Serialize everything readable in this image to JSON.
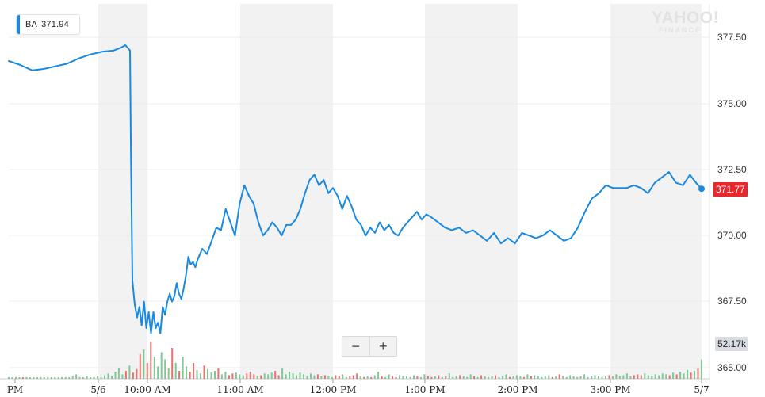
{
  "header": {
    "symbol": "BA",
    "value": "371.94",
    "accent": "#1a8ae0"
  },
  "watermark": {
    "main": "YAHOO!",
    "sub": "FINANCE"
  },
  "zoom": {
    "minus": "−",
    "plus": "+"
  },
  "badges": {
    "last_price": "371.77",
    "last_volume": "52.17k"
  },
  "colors": {
    "line": "#1a8ae0",
    "shade": "#f2f2f2",
    "grid": "#ececec",
    "vol_up": "#7fc795",
    "vol_down": "#e8726e",
    "price_badge": "#e8282c"
  },
  "chart_data": {
    "type": "line",
    "ylim": [
      365.0,
      378.5
    ],
    "y_ticks": [
      "377.50",
      "375.00",
      "372.50",
      "370.00",
      "367.50",
      "365.00"
    ],
    "x_ticks": [
      "PM",
      "5/6",
      "10:00 AM",
      "11:00 AM",
      "12:00 PM",
      "1:00 PM",
      "2:00 PM",
      "3:00 PM",
      "5/7"
    ],
    "shaded_bands": [
      [
        1,
        2
      ],
      [
        3,
        4
      ],
      [
        5,
        6
      ],
      [
        7,
        8
      ]
    ],
    "series": [
      {
        "points": [
          [
            0,
            376.6
          ],
          [
            5,
            376.45
          ],
          [
            10,
            376.25
          ],
          [
            15,
            376.3
          ],
          [
            20,
            376.4
          ],
          [
            25,
            376.5
          ],
          [
            30,
            376.7
          ],
          [
            35,
            376.85
          ],
          [
            40,
            376.95
          ],
          [
            45,
            377.0
          ],
          [
            48,
            377.1
          ],
          [
            50,
            377.2
          ],
          [
            52,
            377.0
          ],
          [
            52.4,
            373.0
          ],
          [
            53,
            368.3
          ],
          [
            54,
            367.4
          ],
          [
            55,
            366.9
          ],
          [
            56,
            367.3
          ],
          [
            57,
            366.6
          ],
          [
            58,
            367.5
          ],
          [
            59,
            366.5
          ],
          [
            60,
            367.1
          ],
          [
            61,
            366.3
          ],
          [
            62,
            367.1
          ],
          [
            63,
            366.5
          ],
          [
            64,
            366.7
          ],
          [
            65,
            366.3
          ],
          [
            66,
            367.3
          ],
          [
            67,
            367.0
          ],
          [
            68,
            367.5
          ],
          [
            69,
            367.8
          ],
          [
            70,
            367.5
          ],
          [
            71,
            367.7
          ],
          [
            72,
            368.2
          ],
          [
            73,
            367.8
          ],
          [
            74,
            367.6
          ],
          [
            75,
            368.0
          ],
          [
            76,
            368.5
          ],
          [
            77,
            369.2
          ],
          [
            78,
            368.9
          ],
          [
            79,
            369.0
          ],
          [
            80,
            368.8
          ],
          [
            81,
            369.1
          ],
          [
            83,
            369.5
          ],
          [
            85,
            369.3
          ],
          [
            87,
            369.8
          ],
          [
            89,
            370.3
          ],
          [
            91,
            370.2
          ],
          [
            93,
            371.0
          ],
          [
            95,
            370.5
          ],
          [
            97,
            370.0
          ],
          [
            99,
            371.2
          ],
          [
            101,
            371.9
          ],
          [
            103,
            371.5
          ],
          [
            105,
            371.2
          ],
          [
            107,
            370.5
          ],
          [
            109,
            370.0
          ],
          [
            111,
            370.2
          ],
          [
            113,
            370.5
          ],
          [
            115,
            370.3
          ],
          [
            117,
            370.0
          ],
          [
            119,
            370.4
          ],
          [
            121,
            370.4
          ],
          [
            123,
            370.6
          ],
          [
            125,
            371.0
          ],
          [
            127,
            371.6
          ],
          [
            129,
            372.1
          ],
          [
            131,
            372.3
          ],
          [
            133,
            371.9
          ],
          [
            135,
            372.1
          ],
          [
            137,
            371.6
          ],
          [
            139,
            371.8
          ],
          [
            141,
            371.5
          ],
          [
            143,
            371.0
          ],
          [
            145,
            371.5
          ],
          [
            147,
            371.1
          ],
          [
            149,
            370.6
          ],
          [
            151,
            370.4
          ],
          [
            153,
            370.0
          ],
          [
            155,
            370.3
          ],
          [
            157,
            370.1
          ],
          [
            159,
            370.5
          ],
          [
            161,
            370.2
          ],
          [
            163,
            370.4
          ],
          [
            165,
            370.1
          ],
          [
            167,
            370.0
          ],
          [
            169,
            370.3
          ],
          [
            171,
            370.5
          ],
          [
            173,
            370.7
          ],
          [
            175,
            370.9
          ],
          [
            177,
            370.6
          ],
          [
            179,
            370.8
          ],
          [
            181,
            370.7
          ],
          [
            184,
            370.5
          ],
          [
            187,
            370.3
          ],
          [
            190,
            370.2
          ],
          [
            193,
            370.3
          ],
          [
            196,
            370.1
          ],
          [
            199,
            370.2
          ],
          [
            202,
            370.0
          ],
          [
            205,
            369.8
          ],
          [
            208,
            370.1
          ],
          [
            211,
            369.7
          ],
          [
            214,
            369.9
          ],
          [
            217,
            369.7
          ],
          [
            220,
            370.1
          ],
          [
            223,
            370.0
          ],
          [
            226,
            369.9
          ],
          [
            229,
            370.0
          ],
          [
            232,
            370.2
          ],
          [
            235,
            370.0
          ],
          [
            238,
            369.8
          ],
          [
            241,
            369.9
          ],
          [
            244,
            370.3
          ],
          [
            247,
            370.9
          ],
          [
            250,
            371.4
          ],
          [
            253,
            371.6
          ],
          [
            256,
            371.9
          ],
          [
            259,
            371.8
          ],
          [
            262,
            371.8
          ],
          [
            265,
            371.8
          ],
          [
            268,
            371.9
          ],
          [
            271,
            371.8
          ],
          [
            274,
            371.6
          ],
          [
            277,
            372.0
          ],
          [
            280,
            372.2
          ],
          [
            283,
            372.4
          ],
          [
            286,
            372.0
          ],
          [
            289,
            371.9
          ],
          [
            292,
            372.3
          ],
          [
            295,
            371.95
          ],
          [
            297,
            371.77
          ]
        ]
      }
    ],
    "volume": [
      1,
      1,
      2,
      1,
      1,
      2,
      1,
      1,
      1,
      2,
      1,
      2,
      1,
      1,
      1,
      2,
      2,
      1,
      3,
      5,
      2,
      1,
      3,
      1,
      2,
      3,
      2,
      4,
      6,
      3,
      8,
      12,
      5,
      9,
      15,
      7,
      11,
      28,
      33,
      18,
      42,
      25,
      14,
      30,
      22,
      12,
      35,
      18,
      9,
      25,
      14,
      8,
      18,
      10,
      6,
      15,
      11,
      7,
      9,
      12,
      5,
      8,
      4,
      6,
      7,
      5,
      4,
      6,
      8,
      5,
      3,
      4,
      6,
      5,
      7,
      9,
      4,
      12,
      5,
      8,
      6,
      4,
      7,
      5,
      3,
      6,
      4,
      5,
      3,
      4,
      3,
      2,
      4,
      3,
      5,
      2,
      3,
      4,
      6,
      3,
      2,
      3,
      2,
      4,
      8,
      3,
      2,
      5,
      3,
      2,
      4,
      3,
      3,
      2,
      4,
      3,
      2,
      5,
      3,
      2,
      3,
      4,
      2,
      3,
      6,
      2,
      3,
      4,
      3,
      2,
      5,
      3,
      2,
      4,
      3,
      2,
      3,
      4,
      2,
      3,
      5,
      2,
      3,
      4,
      3,
      2,
      5,
      3,
      4,
      3,
      2,
      3,
      4,
      2,
      3,
      5,
      3,
      2,
      4,
      3,
      2,
      3,
      5,
      2,
      3,
      4,
      3,
      2,
      3,
      4,
      3,
      5,
      3,
      4,
      6,
      3,
      4,
      5,
      4,
      6,
      4,
      3,
      5,
      4,
      6,
      5,
      4,
      7,
      5,
      8,
      6,
      10,
      7,
      9,
      12,
      22
    ],
    "volume_max": 55000
  }
}
